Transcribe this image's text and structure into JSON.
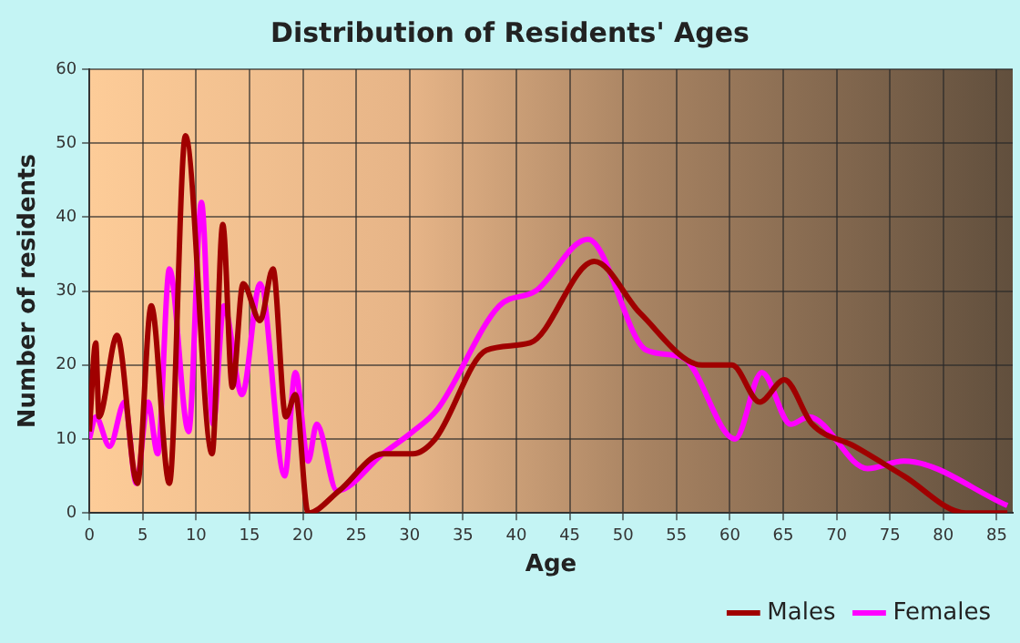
{
  "chart_data": {
    "type": "line",
    "title": "Distribution of Residents' Ages",
    "xlabel": "Age",
    "ylabel": "Number of residents",
    "xlim": [
      0,
      86.5
    ],
    "xticks": [
      0,
      5,
      10,
      15,
      20,
      25,
      30,
      35,
      40,
      45,
      50,
      55,
      60,
      65,
      70,
      75,
      80,
      85
    ],
    "ylim": [
      0,
      60
    ],
    "yticks": [
      0,
      10,
      20,
      30,
      40,
      50,
      60
    ],
    "grid": true,
    "legend": "bottom right",
    "marker": "none",
    "line_style": "solid",
    "series": [
      {
        "name": "Males",
        "color": "#a00000",
        "x": [
          0,
          0.6,
          0.9,
          2.6,
          4.5,
          5.8,
          7.5,
          9,
          11.5,
          12.5,
          13.4,
          14.4,
          16,
          17.2,
          18.4,
          19.3,
          20.5,
          23.4,
          27.5,
          30.3,
          32.4,
          37.2,
          41.3,
          47.3,
          51.6,
          57.4,
          60.2,
          62.8,
          65.1,
          67.7,
          71.7,
          76.3,
          82.1,
          86
        ],
        "values": [
          11,
          23,
          13,
          24,
          4,
          28,
          4,
          51,
          8,
          39,
          17,
          31,
          26,
          33,
          13,
          16,
          0,
          3,
          8,
          8,
          10,
          22,
          23,
          34,
          27,
          20,
          20,
          15,
          18,
          12,
          9,
          5,
          0,
          0
        ]
      },
      {
        "name": "Females",
        "color": "#ff00ff",
        "x": [
          0,
          0.6,
          1.9,
          3.3,
          4.4,
          5.5,
          6.4,
          7.5,
          9.3,
          10.5,
          11.6,
          12.6,
          14.3,
          16,
          18.3,
          19.3,
          20.5,
          21.3,
          23.2,
          27.5,
          30.3,
          32.6,
          38.4,
          41.8,
          46.7,
          52.2,
          55.6,
          60.5,
          63,
          65.7,
          67.4,
          72.9,
          76.3,
          86
        ],
        "values": [
          10,
          13,
          9,
          15,
          4,
          15,
          8,
          33,
          11,
          42,
          12,
          28,
          16,
          31,
          5,
          19,
          7,
          12,
          3,
          8,
          11,
          14,
          28,
          30,
          37,
          22,
          21,
          10,
          19,
          12,
          13,
          6,
          7,
          1
        ]
      }
    ]
  }
}
